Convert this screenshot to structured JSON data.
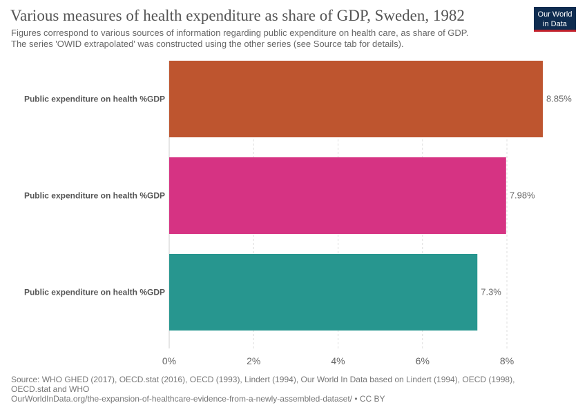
{
  "title": "Various measures of health expenditure as share of GDP, Sweden, 1982",
  "subtitle": [
    "Figures correspond to various sources of information regarding public expenditure on health care, as share of GDP.",
    "The series 'OWID extrapolated' was constructed using the other series (see Source tab for details)."
  ],
  "logo": {
    "line1": "Our World",
    "line2": "in Data"
  },
  "chart_data": {
    "type": "bar",
    "orientation": "horizontal",
    "categories": [
      "Public expenditure on health %GDP",
      "Public expenditure on health %GDP",
      "Public expenditure on health %GDP"
    ],
    "values": [
      8.85,
      7.98,
      7.3
    ],
    "value_labels": [
      "8.85%",
      "7.98%",
      "7.3%"
    ],
    "colors": [
      "#be552f",
      "#d63383",
      "#27968f"
    ],
    "x_ticks": [
      0,
      2,
      4,
      6,
      8
    ],
    "x_tick_labels": [
      "0%",
      "2%",
      "4%",
      "6%",
      "8%"
    ],
    "xlim": [
      0,
      8.85
    ],
    "grid": true
  },
  "footer": {
    "source_line1": "Source: WHO GHED (2017), OECD.stat (2016), OECD (1993), Lindert (1994), Our World In Data based on Lindert (1994), OECD (1998),",
    "source_line2": "OECD.stat and WHO",
    "url_line": "OurWorldInData.org/the-expansion-of-healthcare-evidence-from-a-newly-assembled-dataset/ • CC BY"
  }
}
